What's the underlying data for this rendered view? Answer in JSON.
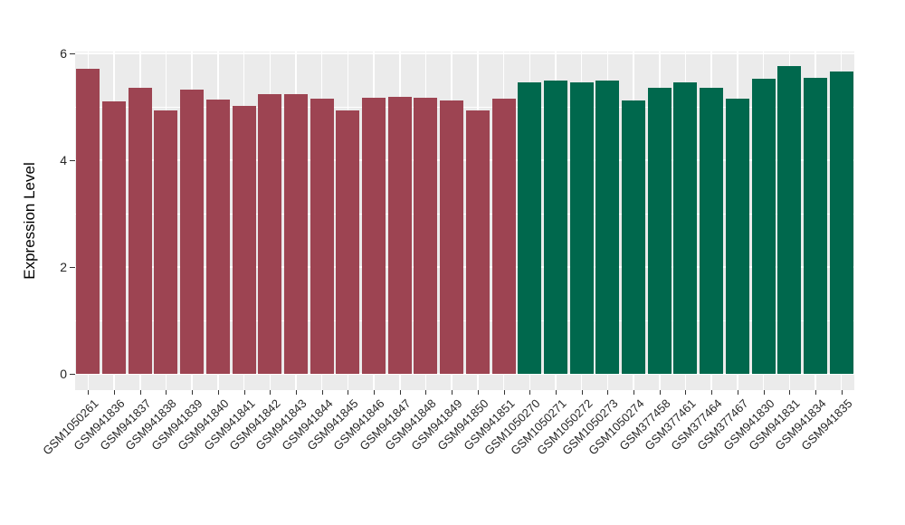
{
  "figure": {
    "background": "#FFFFFF",
    "panel_background": "#EBEBEB",
    "grid_color": "#FFFFFF",
    "tick_color": "#333333",
    "label_color": "#262626"
  },
  "chart_data": {
    "type": "bar",
    "title": "",
    "xlabel": "",
    "ylabel": "Expression Level",
    "ylim": [
      0,
      6
    ],
    "yticks": [
      0,
      2,
      4,
      6
    ],
    "yticks_minor": [
      1,
      3,
      5
    ],
    "grid": "on",
    "legend": "none",
    "x_tick_rotation": 45,
    "categories": [
      "GSM1050261",
      "GSM941836",
      "GSM941837",
      "GSM941838",
      "GSM941839",
      "GSM941840",
      "GSM941841",
      "GSM941842",
      "GSM941843",
      "GSM941844",
      "GSM941845",
      "GSM941846",
      "GSM941847",
      "GSM941848",
      "GSM941849",
      "GSM941850",
      "GSM941851",
      "GSM1050270",
      "GSM1050271",
      "GSM1050272",
      "GSM1050273",
      "GSM1050274",
      "GSM377458",
      "GSM377461",
      "GSM377464",
      "GSM377467",
      "GSM941830",
      "GSM941831",
      "GSM941834",
      "GSM941835"
    ],
    "values": [
      5.72,
      5.1,
      5.35,
      4.93,
      5.33,
      5.14,
      5.02,
      5.24,
      5.23,
      5.15,
      4.93,
      5.17,
      5.19,
      5.17,
      5.12,
      4.94,
      5.15,
      5.45,
      5.5,
      5.45,
      5.49,
      5.12,
      5.35,
      5.45,
      5.35,
      5.16,
      5.53,
      5.76,
      5.54,
      5.66
    ],
    "group_index": [
      0,
      0,
      0,
      0,
      0,
      0,
      0,
      0,
      0,
      0,
      0,
      0,
      0,
      0,
      0,
      0,
      0,
      1,
      1,
      1,
      1,
      1,
      1,
      1,
      1,
      1,
      1,
      1,
      1,
      1
    ],
    "groups": [
      {
        "name": "maroon-group",
        "color": "#9D4452"
      },
      {
        "name": "green-group",
        "color": "#00684D"
      }
    ]
  }
}
